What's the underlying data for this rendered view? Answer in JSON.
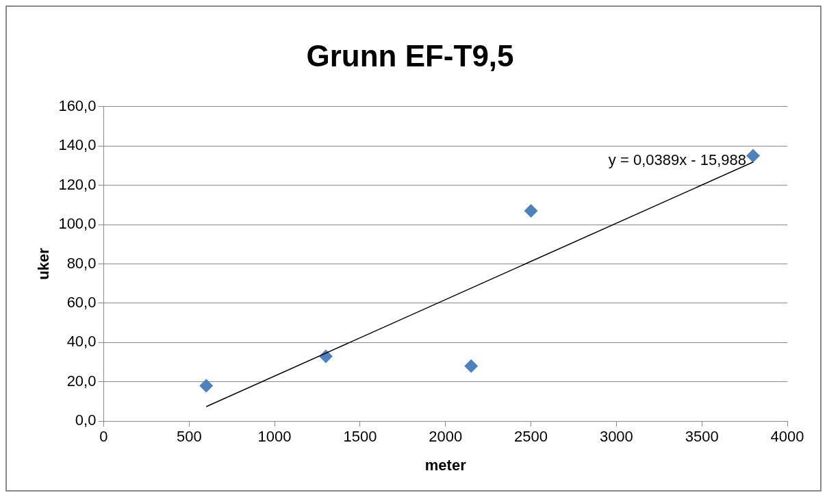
{
  "chart_data": {
    "type": "scatter",
    "title": "Grunn EF-T9,5",
    "xlabel": "meter",
    "ylabel": "uker",
    "x": [
      600,
      1300,
      2150,
      2500,
      3800
    ],
    "series": [
      {
        "color": "#4f81bd",
        "values": [
          18,
          33,
          28,
          107,
          135
        ],
        "marker": "diamond"
      },
      {
        "type": "line",
        "color": "#000000",
        "x": [
          600,
          3800
        ],
        "values": [
          7.4,
          131.8
        ],
        "marker": "none",
        "line_style": "solid"
      }
    ],
    "annotations": [
      "y = 0,0389x - 15,988"
    ],
    "xlim": [
      0,
      4000
    ],
    "xticks": [
      0,
      500,
      1000,
      1500,
      2000,
      2500,
      3000,
      3500,
      4000
    ],
    "ylim": [
      0,
      160
    ],
    "yticks": [
      {
        "value": 0,
        "label": "0,0"
      },
      {
        "value": 20,
        "label": "20,0"
      },
      {
        "value": 40,
        "label": "40,0"
      },
      {
        "value": 60,
        "label": "60,0"
      },
      {
        "value": 80,
        "label": "80,0"
      },
      {
        "value": 100,
        "label": "100,0"
      },
      {
        "value": 120,
        "label": "120,0"
      },
      {
        "value": 140,
        "label": "140,0"
      },
      {
        "value": 160,
        "label": "160,0"
      }
    ],
    "grid": "y",
    "legend": false
  }
}
